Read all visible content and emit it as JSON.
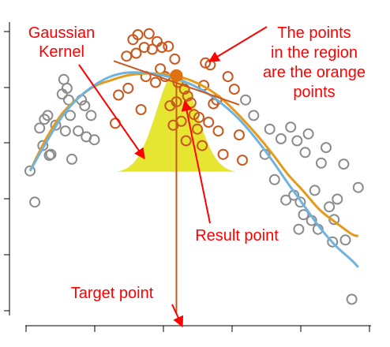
{
  "chart_data": {
    "type": "scatter",
    "title": "",
    "xlabel": "",
    "ylabel": "",
    "xlim": [
      0,
      10.5
    ],
    "ylim": [
      -1.6,
      1.4
    ],
    "grid": false,
    "colors": {
      "gray_points": "#8c8c8c",
      "orange_points": "#c8581e",
      "kernel_fill": "#e6e632",
      "orange_curve": "#e69a1a",
      "blue_curve": "#6fb3e0",
      "local_line": "#c8581e",
      "result_point": "#e07010",
      "annotation": "#ff0000"
    },
    "annotations": {
      "gaussian_kernel_l1": "Gaussian",
      "gaussian_kernel_l2": "Kernel",
      "region_l1": "The points",
      "region_l2": "in the region",
      "region_l3": "are the orange",
      "region_l4": "points",
      "result_point": "Result point",
      "target_point": "Target point"
    },
    "target_x": 4.55,
    "result_y": 0.85,
    "kernel": {
      "center": 4.55,
      "sd": 0.62,
      "base": -0.15,
      "peak": 0.9
    },
    "local_line": {
      "x": [
        2.6,
        6.5
      ],
      "y": [
        1.0,
        0.55
      ]
    },
    "series": [
      {
        "type": "scatter",
        "role": "points outside region",
        "points": [
          [
            0.0,
            -0.13
          ],
          [
            0.15,
            -0.45
          ],
          [
            0.3,
            0.31
          ],
          [
            0.4,
            0.13
          ],
          [
            0.45,
            0.4
          ],
          [
            0.55,
            0.44
          ],
          [
            0.6,
            0.03
          ],
          [
            0.65,
            0.04
          ],
          [
            0.8,
            0.34
          ],
          [
            1.0,
            0.66
          ],
          [
            1.05,
            0.81
          ],
          [
            1.1,
            0.28
          ],
          [
            1.15,
            0.72
          ],
          [
            1.2,
            0.6
          ],
          [
            1.25,
            0.44
          ],
          [
            1.3,
            -0.01
          ],
          [
            1.5,
            0.28
          ],
          [
            1.6,
            0.6
          ],
          [
            1.7,
            0.54
          ],
          [
            1.75,
            0.22
          ],
          [
            1.9,
            0.44
          ],
          [
            2.0,
            0.19
          ],
          [
            6.7,
            0.6
          ],
          [
            6.95,
            0.44
          ],
          [
            7.3,
            0.04
          ],
          [
            7.45,
            0.3
          ],
          [
            7.6,
            -0.22
          ],
          [
            7.8,
            0.2
          ],
          [
            7.95,
            -0.43
          ],
          [
            8.1,
            0.32
          ],
          [
            8.2,
            -0.38
          ],
          [
            8.3,
            0.18
          ],
          [
            8.35,
            -0.73
          ],
          [
            8.4,
            -0.45
          ],
          [
            8.5,
            -0.58
          ],
          [
            8.55,
            0.06
          ],
          [
            8.65,
            0.25
          ],
          [
            8.75,
            -0.64
          ],
          [
            8.85,
            -0.33
          ],
          [
            8.95,
            -0.73
          ],
          [
            9.05,
            -0.05
          ],
          [
            9.2,
            0.11
          ],
          [
            9.3,
            -0.5
          ],
          [
            9.4,
            -0.86
          ],
          [
            9.45,
            -0.63
          ],
          [
            9.55,
            -0.42
          ],
          [
            9.75,
            -0.06
          ],
          [
            10.0,
            -1.45
          ],
          [
            10.2,
            -0.3
          ],
          [
            9.8,
            -0.84
          ]
        ]
      },
      {
        "type": "scatter",
        "role": "points in the region",
        "points": [
          [
            2.65,
            0.36
          ],
          [
            2.75,
            0.65
          ],
          [
            3.0,
            1.05
          ],
          [
            3.05,
            0.72
          ],
          [
            3.2,
            1.22
          ],
          [
            3.3,
            1.08
          ],
          [
            3.35,
            1.27
          ],
          [
            3.45,
            0.5
          ],
          [
            3.55,
            1.14
          ],
          [
            3.6,
            0.84
          ],
          [
            3.7,
            1.28
          ],
          [
            3.8,
            1.12
          ],
          [
            3.9,
            0.78
          ],
          [
            3.95,
            1.2
          ],
          [
            4.05,
            0.92
          ],
          [
            4.1,
            1.14
          ],
          [
            4.2,
            0.84
          ],
          [
            4.3,
            1.15
          ],
          [
            4.35,
            0.54
          ],
          [
            4.45,
            0.34
          ],
          [
            4.5,
            1.02
          ],
          [
            4.55,
            0.58
          ],
          [
            4.6,
            0.78
          ],
          [
            4.7,
            0.38
          ],
          [
            4.8,
            0.71
          ],
          [
            4.85,
            0.18
          ],
          [
            4.9,
            0.64
          ],
          [
            5.0,
            0.57
          ],
          [
            5.1,
            0.45
          ],
          [
            5.2,
            0.3
          ],
          [
            5.25,
            0.42
          ],
          [
            5.35,
            0.13
          ],
          [
            5.4,
            0.75
          ],
          [
            5.55,
            0.37
          ],
          [
            5.6,
            0.96
          ],
          [
            5.7,
            0.56
          ],
          [
            5.85,
            0.28
          ],
          [
            6.0,
            0.04
          ],
          [
            6.15,
            0.84
          ],
          [
            6.35,
            0.71
          ],
          [
            6.5,
            0.24
          ],
          [
            6.6,
            -0.02
          ],
          [
            5.45,
            0.98
          ],
          [
            5.8,
            0.6
          ]
        ]
      },
      {
        "type": "line",
        "role": "smoothed curve (orange)",
        "x": [
          0.0,
          0.5,
          1.0,
          1.5,
          2.0,
          2.5,
          3.0,
          3.5,
          4.0,
          4.5,
          5.0,
          5.5,
          6.0,
          6.5,
          7.0,
          7.5,
          8.0,
          8.5,
          9.0,
          9.5,
          10.0,
          10.2
        ],
        "y": [
          -0.13,
          0.2,
          0.46,
          0.62,
          0.74,
          0.8,
          0.85,
          0.87,
          0.87,
          0.85,
          0.8,
          0.72,
          0.6,
          0.44,
          0.26,
          0.06,
          -0.16,
          -0.34,
          -0.53,
          -0.66,
          -0.78,
          -0.8
        ]
      },
      {
        "type": "line",
        "role": "true curve (blue)",
        "x": [
          0.0,
          0.5,
          1.0,
          1.5,
          2.0,
          2.5,
          3.0,
          3.5,
          4.0,
          4.5,
          5.0,
          5.5,
          6.0,
          6.5,
          7.0,
          7.5,
          8.0,
          8.5,
          9.0,
          9.5,
          10.0,
          10.2
        ],
        "y": [
          -0.13,
          0.16,
          0.43,
          0.62,
          0.75,
          0.84,
          0.88,
          0.88,
          0.86,
          0.82,
          0.76,
          0.67,
          0.55,
          0.4,
          0.21,
          -0.01,
          -0.25,
          -0.48,
          -0.71,
          -0.9,
          -1.05,
          -1.12
        ]
      }
    ]
  }
}
